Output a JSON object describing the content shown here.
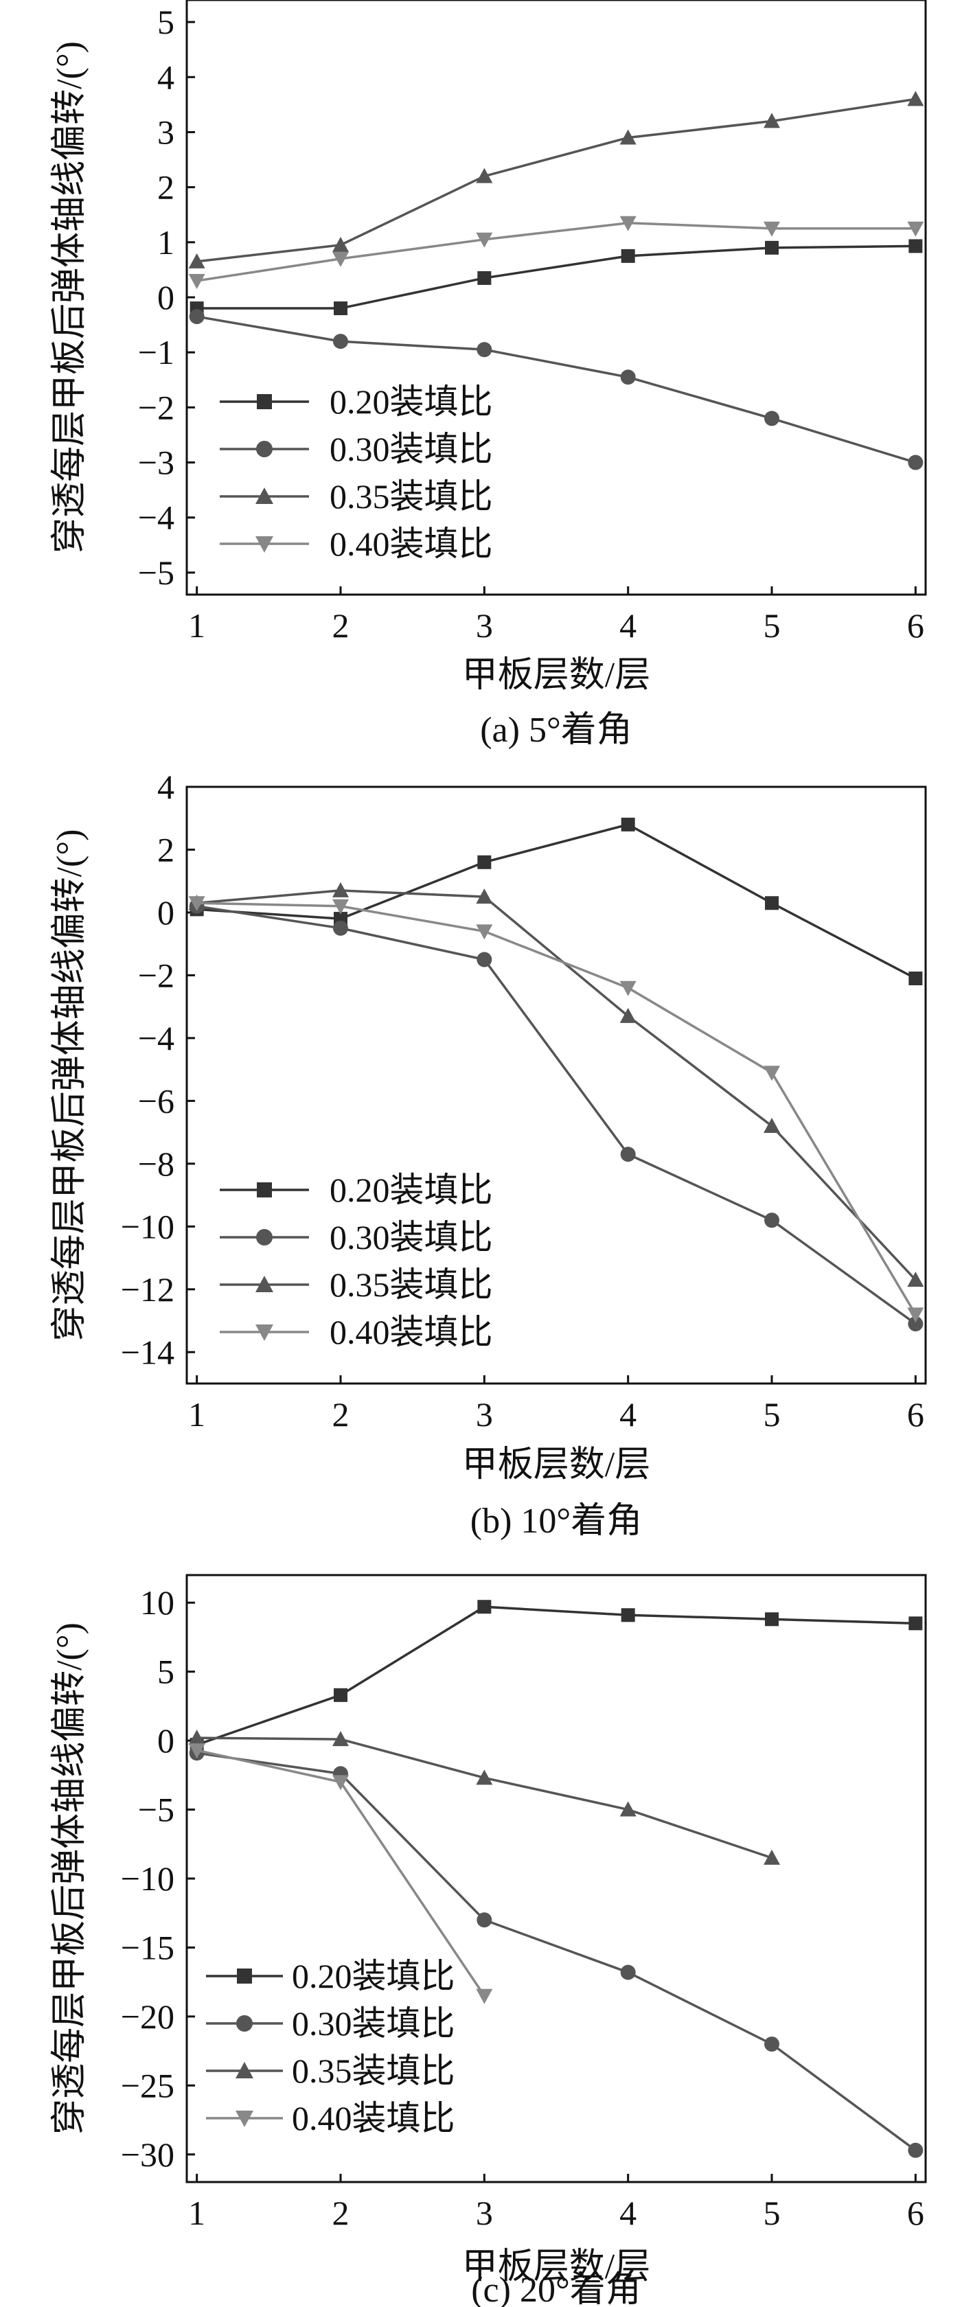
{
  "chart_data": [
    {
      "type": "line",
      "caption": "(a) 5°着角",
      "xlabel": "甲板层数/层",
      "ylabel": "穿透每层甲板后弹体轴线偏转/(°)",
      "x": [
        1,
        2,
        3,
        4,
        5,
        6
      ],
      "xlim": [
        0.93,
        6.07
      ],
      "ylim": [
        -5.4,
        5.4
      ],
      "yticks": [
        -5,
        -4,
        -3,
        -2,
        -1,
        0,
        1,
        2,
        3,
        4,
        5
      ],
      "ytick_labels": [
        "−5",
        "−4",
        "−3",
        "−2",
        "−1",
        "0",
        "1",
        "2",
        "3",
        "4",
        "5"
      ],
      "legend_position": "lower-left",
      "series": [
        {
          "name": "0.20装填比",
          "marker": "square",
          "color": "#333333",
          "values": [
            -0.2,
            -0.2,
            0.35,
            0.75,
            0.9,
            0.93
          ]
        },
        {
          "name": "0.30装填比",
          "marker": "circle",
          "color": "#555555",
          "values": [
            -0.35,
            -0.8,
            -0.95,
            -1.45,
            -2.2,
            -3.0
          ]
        },
        {
          "name": "0.35装填比",
          "marker": "triangle-up",
          "color": "#555555",
          "values": [
            0.65,
            0.95,
            2.2,
            2.9,
            3.2,
            3.6
          ]
        },
        {
          "name": "0.40装填比",
          "marker": "triangle-down",
          "color": "#888888",
          "values": [
            0.3,
            0.7,
            1.05,
            1.35,
            1.25,
            1.25
          ]
        }
      ]
    },
    {
      "type": "line",
      "caption": "(b) 10°着角",
      "xlabel": "甲板层数/层",
      "ylabel": "穿透每层甲板后弹体轴线偏转/(°)",
      "x": [
        1,
        2,
        3,
        4,
        5,
        6
      ],
      "xlim": [
        0.93,
        6.07
      ],
      "ylim": [
        -15,
        4
      ],
      "yticks": [
        -14,
        -12,
        -10,
        -8,
        -6,
        -4,
        -2,
        0,
        2,
        4
      ],
      "ytick_labels": [
        "−14",
        "−12",
        "−10",
        "−8",
        "−6",
        "−4",
        "−2",
        "0",
        "2",
        "4"
      ],
      "legend_position": "lower-left",
      "series": [
        {
          "name": "0.20装填比",
          "marker": "square",
          "color": "#333333",
          "values": [
            0.1,
            -0.2,
            1.6,
            2.8,
            0.3,
            -2.1
          ]
        },
        {
          "name": "0.30装填比",
          "marker": "circle",
          "color": "#555555",
          "values": [
            0.2,
            -0.5,
            -1.5,
            -7.7,
            -9.8,
            -13.1
          ]
        },
        {
          "name": "0.35装填比",
          "marker": "triangle-up",
          "color": "#555555",
          "values": [
            0.3,
            0.7,
            0.5,
            -3.3,
            -6.8,
            -11.7
          ]
        },
        {
          "name": "0.40装填比",
          "marker": "triangle-down",
          "color": "#888888",
          "values": [
            0.3,
            0.2,
            -0.6,
            -2.4,
            -5.1,
            -12.8
          ]
        }
      ]
    },
    {
      "type": "line",
      "caption": "(c) 20°着角",
      "xlabel": "甲板层数/层",
      "ylabel": "穿透每层甲板后弹体轴线偏转/(°)",
      "x": [
        1,
        2,
        3,
        4,
        5,
        6
      ],
      "xlim": [
        0.93,
        6.07
      ],
      "ylim": [
        -32,
        12
      ],
      "yticks": [
        -30,
        -25,
        -20,
        -15,
        -10,
        -5,
        0,
        5,
        10
      ],
      "ytick_labels": [
        "−30",
        "−25",
        "−20",
        "−15",
        "−10",
        "−5",
        "0",
        "5",
        "10"
      ],
      "legend_position": "lower-left",
      "series": [
        {
          "name": "0.20装填比",
          "marker": "square",
          "color": "#333333",
          "values": [
            -0.3,
            3.3,
            9.7,
            9.1,
            8.8,
            8.5
          ]
        },
        {
          "name": "0.30装填比",
          "marker": "circle",
          "color": "#555555",
          "values": [
            -0.9,
            -2.4,
            -13.0,
            -16.8,
            -22.0,
            -29.7
          ]
        },
        {
          "name": "0.35装填比",
          "marker": "triangle-up",
          "color": "#555555",
          "values": [
            0.2,
            0.1,
            -2.7,
            -5.0,
            -8.5,
            null
          ]
        },
        {
          "name": "0.40装填比",
          "marker": "triangle-down",
          "color": "#888888",
          "values": [
            -0.7,
            -3.0,
            -18.5,
            null,
            null,
            null
          ]
        }
      ]
    }
  ]
}
